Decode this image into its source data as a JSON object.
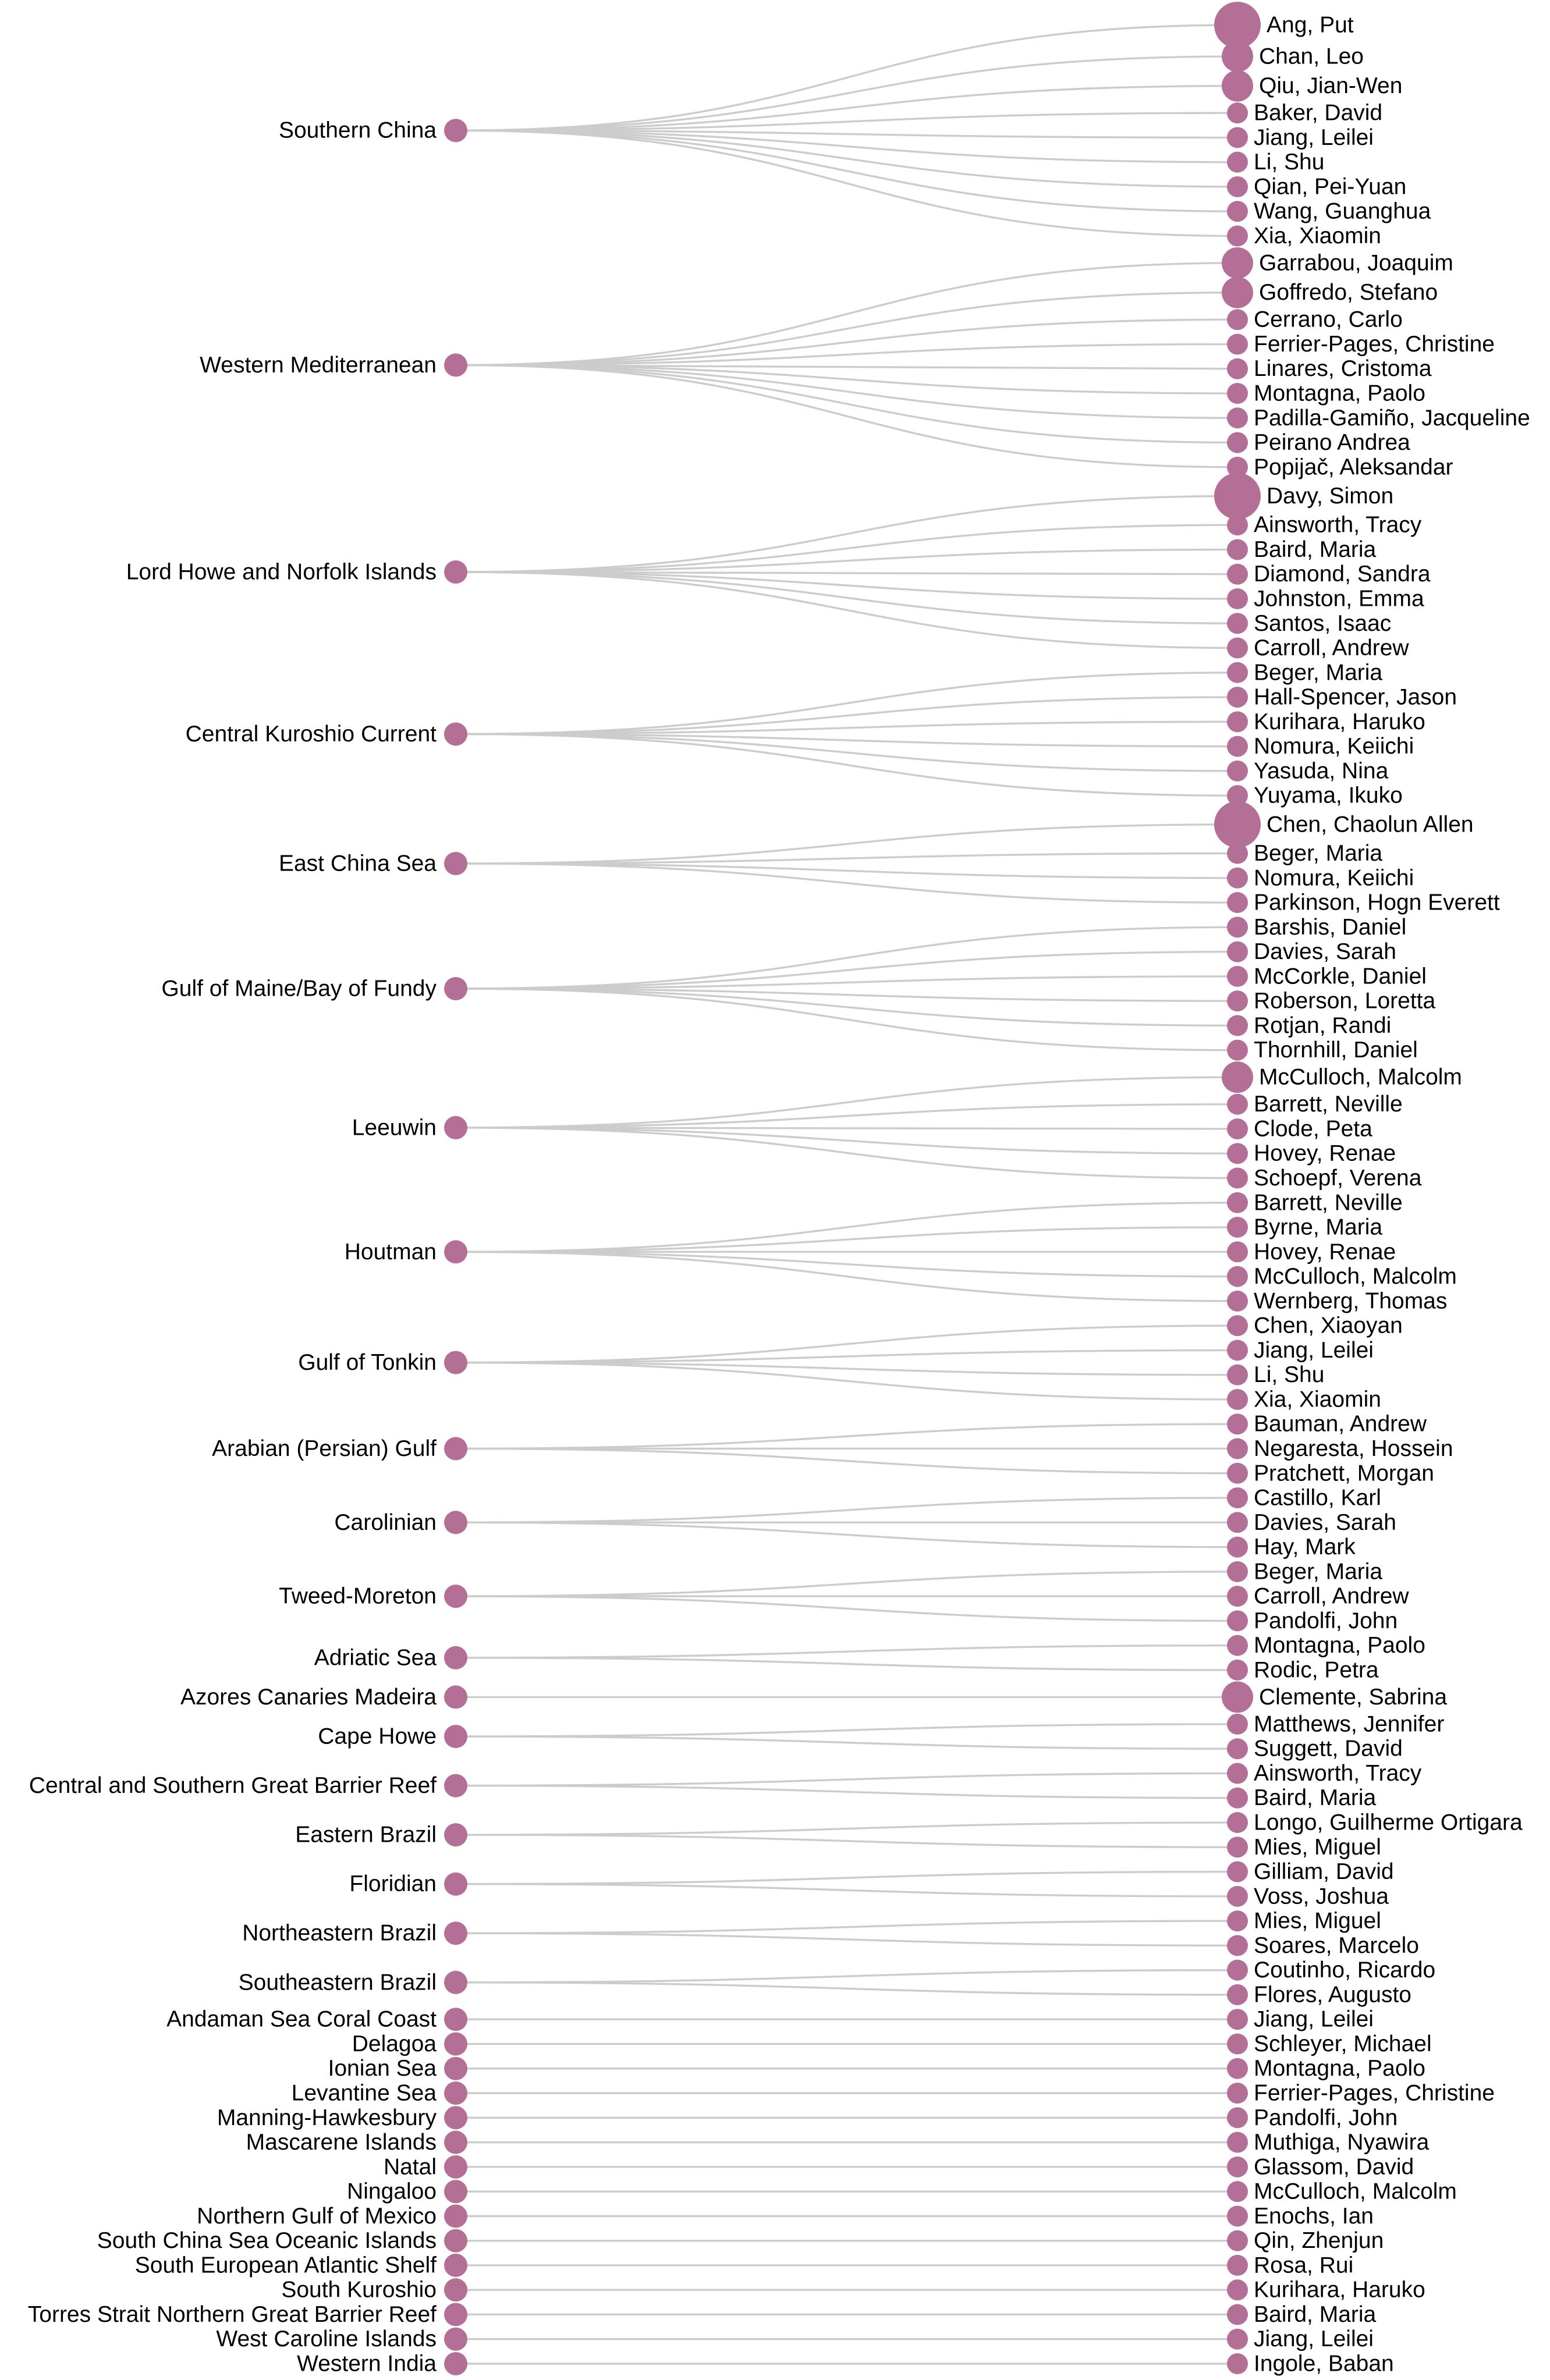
{
  "colors": {
    "node": "#b46f96",
    "link": "#cccccc",
    "text": "#000000",
    "background": "#ffffff"
  },
  "groups": [
    {
      "region": "Southern China",
      "people": [
        {
          "name": "Ang, Put",
          "size": 3
        },
        {
          "name": "Chan, Leo",
          "size": 2
        },
        {
          "name": "Qiu, Jian-Wen",
          "size": 2
        },
        {
          "name": "Baker, David",
          "size": 1
        },
        {
          "name": "Jiang, Leilei",
          "size": 1
        },
        {
          "name": "Li, Shu",
          "size": 1
        },
        {
          "name": "Qian, Pei-Yuan",
          "size": 1
        },
        {
          "name": "Wang, Guanghua",
          "size": 1
        },
        {
          "name": "Xia, Xiaomin",
          "size": 1
        }
      ]
    },
    {
      "region": "Western Mediterranean",
      "people": [
        {
          "name": "Garrabou, Joaquim",
          "size": 2
        },
        {
          "name": "Goffredo, Stefano",
          "size": 2
        },
        {
          "name": "Cerrano, Carlo",
          "size": 1
        },
        {
          "name": "Ferrier-Pages, Christine",
          "size": 1
        },
        {
          "name": "Linares, Cristoma",
          "size": 1
        },
        {
          "name": "Montagna, Paolo",
          "size": 1
        },
        {
          "name": "Padilla-Gamiño, Jacqueline",
          "size": 1
        },
        {
          "name": "Peirano Andrea",
          "size": 1
        },
        {
          "name": "Popijač, Aleksandar",
          "size": 1
        }
      ]
    },
    {
      "region": "Lord Howe and Norfolk Islands",
      "people": [
        {
          "name": "Davy, Simon",
          "size": 3
        },
        {
          "name": "Ainsworth, Tracy",
          "size": 1
        },
        {
          "name": "Baird, Maria",
          "size": 1
        },
        {
          "name": "Diamond, Sandra",
          "size": 1
        },
        {
          "name": "Johnston, Emma",
          "size": 1
        },
        {
          "name": "Santos, Isaac",
          "size": 1
        },
        {
          "name": "Carroll, Andrew",
          "size": 1
        }
      ]
    },
    {
      "region": "Central Kuroshio Current",
      "people": [
        {
          "name": "Beger, Maria",
          "size": 1
        },
        {
          "name": "Hall-Spencer, Jason",
          "size": 1
        },
        {
          "name": "Kurihara, Haruko",
          "size": 1
        },
        {
          "name": "Nomura, Keiichi",
          "size": 1
        },
        {
          "name": "Yasuda, Nina",
          "size": 1
        },
        {
          "name": "Yuyama, Ikuko",
          "size": 1
        }
      ]
    },
    {
      "region": "East China Sea",
      "people": [
        {
          "name": "Chen, Chaolun Allen",
          "size": 3
        },
        {
          "name": "Beger, Maria",
          "size": 1
        },
        {
          "name": "Nomura, Keiichi",
          "size": 1
        },
        {
          "name": "Parkinson, Hogn Everett",
          "size": 1
        }
      ]
    },
    {
      "region": "Gulf of Maine/Bay of Fundy",
      "people": [
        {
          "name": "Barshis, Daniel",
          "size": 1
        },
        {
          "name": "Davies, Sarah",
          "size": 1
        },
        {
          "name": "McCorkle, Daniel",
          "size": 1
        },
        {
          "name": "Roberson, Loretta",
          "size": 1
        },
        {
          "name": "Rotjan, Randi",
          "size": 1
        },
        {
          "name": "Thornhill, Daniel",
          "size": 1
        }
      ]
    },
    {
      "region": "Leeuwin",
      "people": [
        {
          "name": "McCulloch, Malcolm",
          "size": 2
        },
        {
          "name": "Barrett, Neville",
          "size": 1
        },
        {
          "name": "Clode, Peta",
          "size": 1
        },
        {
          "name": "Hovey, Renae",
          "size": 1
        },
        {
          "name": "Schoepf, Verena",
          "size": 1
        }
      ]
    },
    {
      "region": "Houtman",
      "people": [
        {
          "name": "Barrett, Neville",
          "size": 1
        },
        {
          "name": "Byrne, Maria",
          "size": 1
        },
        {
          "name": "Hovey, Renae",
          "size": 1
        },
        {
          "name": "McCulloch, Malcolm",
          "size": 1
        },
        {
          "name": "Wernberg, Thomas",
          "size": 1
        }
      ]
    },
    {
      "region": "Gulf of Tonkin",
      "people": [
        {
          "name": "Chen, Xiaoyan",
          "size": 1
        },
        {
          "name": "Jiang, Leilei",
          "size": 1
        },
        {
          "name": "Li, Shu",
          "size": 1
        },
        {
          "name": "Xia, Xiaomin",
          "size": 1
        }
      ]
    },
    {
      "region": "Arabian (Persian) Gulf",
      "people": [
        {
          "name": "Bauman, Andrew",
          "size": 1
        },
        {
          "name": "Negaresta, Hossein",
          "size": 1
        },
        {
          "name": "Pratchett, Morgan",
          "size": 1
        }
      ]
    },
    {
      "region": "Carolinian",
      "people": [
        {
          "name": "Castillo, Karl",
          "size": 1
        },
        {
          "name": "Davies, Sarah",
          "size": 1
        },
        {
          "name": "Hay, Mark",
          "size": 1
        }
      ]
    },
    {
      "region": "Tweed-Moreton",
      "people": [
        {
          "name": "Beger, Maria",
          "size": 1
        },
        {
          "name": "Carroll, Andrew",
          "size": 1
        },
        {
          "name": "Pandolfi, John",
          "size": 1
        }
      ]
    },
    {
      "region": "Adriatic Sea",
      "people": [
        {
          "name": "Montagna, Paolo",
          "size": 1
        },
        {
          "name": "Rodic, Petra",
          "size": 1
        }
      ]
    },
    {
      "region": "Azores Canaries Madeira",
      "people": [
        {
          "name": "Clemente, Sabrina",
          "size": 2
        }
      ]
    },
    {
      "region": "Cape Howe",
      "people": [
        {
          "name": "Matthews, Jennifer",
          "size": 1
        },
        {
          "name": "Suggett, David",
          "size": 1
        }
      ]
    },
    {
      "region": "Central and Southern Great Barrier Reef",
      "people": [
        {
          "name": "Ainsworth, Tracy",
          "size": 1
        },
        {
          "name": "Baird, Maria",
          "size": 1
        }
      ]
    },
    {
      "region": "Eastern Brazil",
      "people": [
        {
          "name": "Longo, Guilherme Ortigara",
          "size": 1
        },
        {
          "name": "Mies, Miguel",
          "size": 1
        }
      ]
    },
    {
      "region": "Floridian",
      "people": [
        {
          "name": "Gilliam, David",
          "size": 1
        },
        {
          "name": "Voss, Joshua",
          "size": 1
        }
      ]
    },
    {
      "region": "Northeastern Brazil",
      "people": [
        {
          "name": "Mies, Miguel",
          "size": 1
        },
        {
          "name": "Soares, Marcelo",
          "size": 1
        }
      ]
    },
    {
      "region": "Southeastern Brazil",
      "people": [
        {
          "name": "Coutinho, Ricardo",
          "size": 1
        },
        {
          "name": "Flores, Augusto",
          "size": 1
        }
      ]
    },
    {
      "region": "Andaman Sea Coral Coast",
      "people": [
        {
          "name": "Jiang, Leilei",
          "size": 1
        }
      ]
    },
    {
      "region": "Delagoa",
      "people": [
        {
          "name": "Schleyer, Michael",
          "size": 1
        }
      ]
    },
    {
      "region": "Ionian Sea",
      "people": [
        {
          "name": "Montagna, Paolo",
          "size": 1
        }
      ]
    },
    {
      "region": "Levantine Sea",
      "people": [
        {
          "name": "Ferrier-Pages, Christine",
          "size": 1
        }
      ]
    },
    {
      "region": "Manning-Hawkesbury",
      "people": [
        {
          "name": "Pandolfi, John",
          "size": 1
        }
      ]
    },
    {
      "region": "Mascarene Islands",
      "people": [
        {
          "name": "Muthiga, Nyawira",
          "size": 1
        }
      ]
    },
    {
      "region": "Natal",
      "people": [
        {
          "name": "Glassom, David",
          "size": 1
        }
      ]
    },
    {
      "region": "Ningaloo",
      "people": [
        {
          "name": "McCulloch, Malcolm",
          "size": 1
        }
      ]
    },
    {
      "region": "Northern Gulf of Mexico",
      "people": [
        {
          "name": "Enochs, Ian",
          "size": 1
        }
      ]
    },
    {
      "region": "South China Sea Oceanic Islands",
      "people": [
        {
          "name": "Qin, Zhenjun",
          "size": 1
        }
      ]
    },
    {
      "region": "South European Atlantic Shelf",
      "people": [
        {
          "name": "Rosa, Rui",
          "size": 1
        }
      ]
    },
    {
      "region": "South Kuroshio",
      "people": [
        {
          "name": "Kurihara, Haruko",
          "size": 1
        }
      ]
    },
    {
      "region": "Torres Strait Northern Great Barrier Reef",
      "people": [
        {
          "name": "Baird, Maria",
          "size": 1
        }
      ]
    },
    {
      "region": "West Caroline Islands",
      "people": [
        {
          "name": "Jiang, Leilei",
          "size": 1
        }
      ]
    },
    {
      "region": "Western India",
      "people": [
        {
          "name": "Ingole, Baban",
          "size": 1
        }
      ]
    }
  ]
}
